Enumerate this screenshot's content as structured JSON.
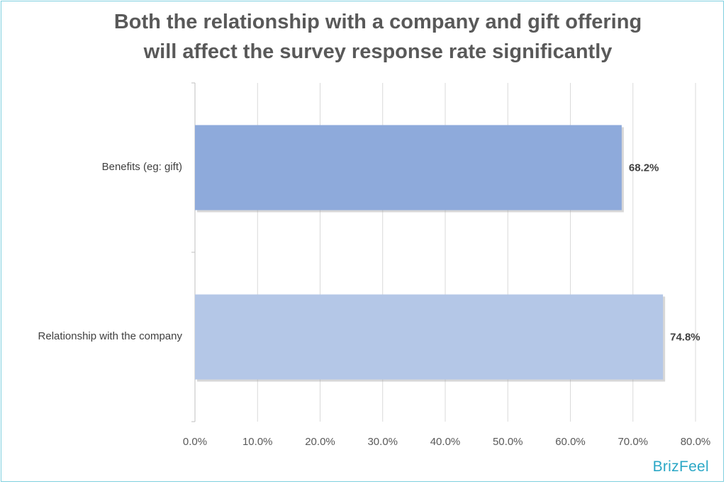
{
  "chart_data": {
    "type": "bar",
    "orientation": "horizontal",
    "title_lines": [
      "Both the relationship with a company and gift offering",
      "will affect the survey response rate significantly"
    ],
    "categories": [
      "Benefits (eg: gift)",
      "Relationship with the company"
    ],
    "values": [
      68.2,
      74.8
    ],
    "value_labels": [
      "68.2%",
      "74.8%"
    ],
    "bar_colors": [
      "#8eaadb",
      "#b4c7e7"
    ],
    "xlim": [
      0,
      80
    ],
    "xticks": [
      0,
      10,
      20,
      30,
      40,
      50,
      60,
      70,
      80
    ],
    "xtick_labels": [
      "0.0%",
      "10.0%",
      "20.0%",
      "30.0%",
      "40.0%",
      "50.0%",
      "60.0%",
      "70.0%",
      "80.0%"
    ],
    "grid": true,
    "xlabel": "",
    "ylabel": ""
  },
  "brand": "BrizFeel",
  "colors": {
    "border": "#7fd0df",
    "brand": "#2aa7c6",
    "title": "#595959",
    "grid": "#d9d9d9"
  }
}
